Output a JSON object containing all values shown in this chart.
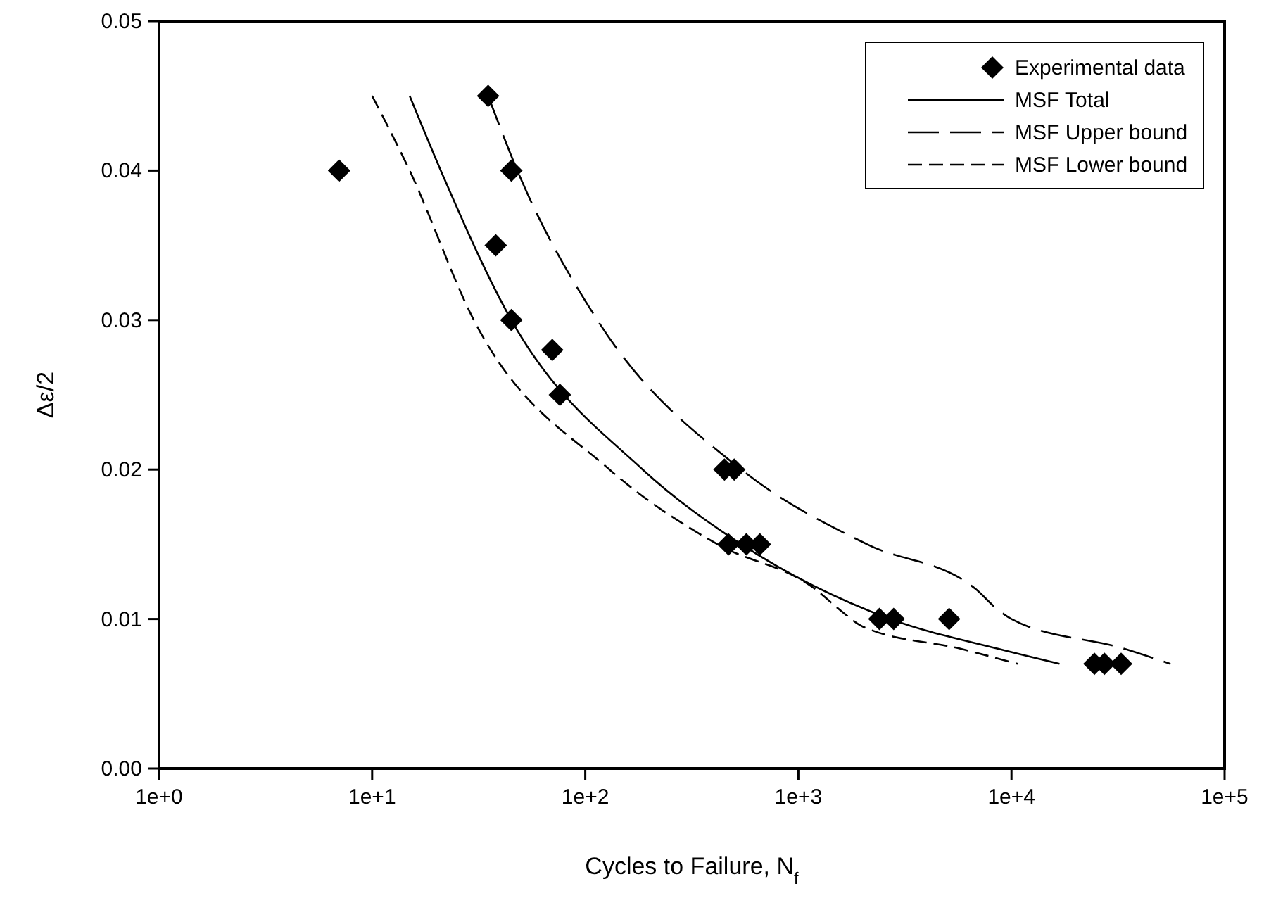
{
  "chart_data": {
    "type": "scatter",
    "xlabel": "Cycles to Failure, N$_{f}$",
    "ylabel": "Δε/2",
    "log": "x",
    "xlim": [
      1,
      100000
    ],
    "ylim": [
      0,
      0.05
    ],
    "xticks": [
      {
        "value": 1,
        "label": "1e+0"
      },
      {
        "value": 10,
        "label": "1e+1"
      },
      {
        "value": 100,
        "label": "1e+2"
      },
      {
        "value": 1000,
        "label": "1e+3"
      },
      {
        "value": 10000,
        "label": "1e+4"
      },
      {
        "value": 100000,
        "label": "1e+5"
      }
    ],
    "yticks": [
      {
        "value": 0,
        "label": "0.00"
      },
      {
        "value": 0.01,
        "label": "0.01"
      },
      {
        "value": 0.02,
        "label": "0.02"
      },
      {
        "value": 0.03,
        "label": "0.03"
      },
      {
        "value": 0.04,
        "label": "0.04"
      },
      {
        "value": 0.05,
        "label": "0.05"
      }
    ],
    "legend": "top right",
    "grid": false,
    "series": [
      {
        "name": "Experimental data",
        "marker": "diamond",
        "color": "#000000",
        "x": [
          7,
          35,
          45,
          38,
          45,
          70,
          76,
          450,
          500,
          470,
          570,
          660,
          2400,
          2800,
          5100,
          24500,
          27300,
          32700
        ],
        "values": [
          0.04,
          0.045,
          0.04,
          0.035,
          0.03,
          0.028,
          0.025,
          0.02,
          0.02,
          0.015,
          0.015,
          0.015,
          0.01,
          0.01,
          0.01,
          0.007,
          0.007,
          0.007
        ]
      },
      {
        "name": "MSF Total",
        "type": "line",
        "line_style": "solid",
        "color": "#000000",
        "x": [
          15,
          21,
          45,
          186,
          540,
          2700,
          8700,
          16800
        ],
        "values": [
          0.045,
          0.04,
          0.03,
          0.02,
          0.015,
          0.01,
          0.008,
          0.007
        ]
      },
      {
        "name": "MSF Upper bound",
        "type": "line",
        "line_style": "dashed",
        "color": "#000000",
        "x": [
          35,
          48,
          114,
          540,
          2100,
          6800,
          8500,
          10000,
          34000,
          55700
        ],
        "values": [
          0.045,
          0.04,
          0.03,
          0.02,
          0.015,
          0.012,
          0.0107,
          0.01,
          0.008,
          0.007
        ]
      },
      {
        "name": "MSF Lower bound",
        "type": "line",
        "line_style": "dotted",
        "color": "#000000",
        "x": [
          10,
          15,
          30,
          130,
          417,
          1200,
          1600,
          2000,
          5800,
          10700
        ],
        "values": [
          0.045,
          0.04,
          0.03,
          0.02,
          0.015,
          0.012,
          0.0105,
          0.0095,
          0.008,
          0.007
        ]
      }
    ]
  }
}
